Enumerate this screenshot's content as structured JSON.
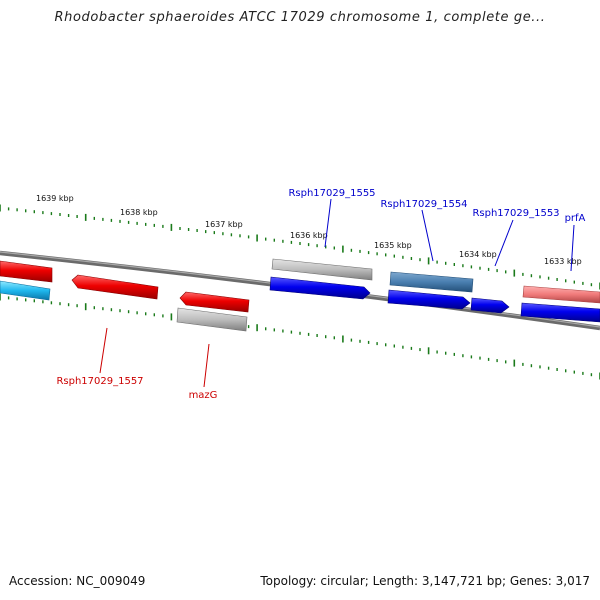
{
  "title": "Rhodobacter sphaeroides ATCC 17029 chromosome 1, complete ge...",
  "tick_labels": [
    "1639 kbp",
    "1638 kbp",
    "1637 kbp",
    "1636 kbp",
    "1635 kbp",
    "1634 kbp",
    "1633 kbp"
  ],
  "gene_labels": {
    "rsph1555": "Rsph17029_1555",
    "rsph1554": "Rsph17029_1554",
    "rsph1553": "Rsph17029_1553",
    "prfA": "prfA",
    "rsph1557": "Rsph17029_1557",
    "mazG": "mazG"
  },
  "footer": {
    "accession": "Accession: NC_009049",
    "summary": "Topology: circular; Length: 3,147,721 bp; Genes: 3,017"
  },
  "colors": {
    "forward_label": "#0000cc",
    "reverse_label": "#cc0000",
    "forward_gene": "#0000ee",
    "reverse_gene": "#ee0000",
    "tick": "#1a7a1a",
    "backbone": "#777777"
  }
}
